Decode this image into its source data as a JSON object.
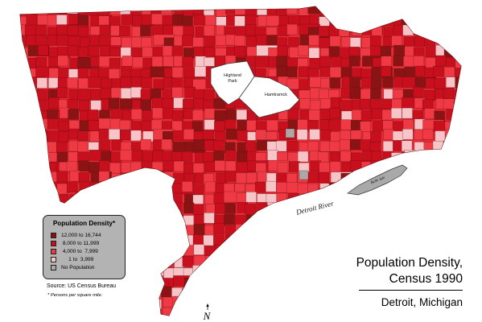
{
  "map": {
    "labels": {
      "highland_park": [
        "Highland",
        "Park"
      ],
      "hamtramck": "Hamtramck",
      "detroit_river": "Detroit River",
      "belle_isle": "Belle Isle"
    },
    "colors": {
      "class_1": "#8a1414",
      "class_2": "#c80f1e",
      "class_3": "#ef3a45",
      "class_4": "#f7c4c8",
      "no_population": "#a9a9a9",
      "background": "#ffffff"
    }
  },
  "legend": {
    "title": "Population Density*",
    "items": [
      {
        "label": "12,000 to 16,744",
        "color": "#8a1414"
      },
      {
        "label": " 8,000 to 11,999",
        "color": "#c80f1e"
      },
      {
        "label": " 4,000 to  7,999",
        "color": "#ef3a45"
      },
      {
        "label": "     1 to  3,999",
        "color": "#f7c4c8"
      },
      {
        "label": "No Population",
        "color": "#a9a9a9"
      }
    ]
  },
  "source": "Source: US Census Bureau",
  "note": "* Persons per square mile.",
  "title": {
    "line1": "Population Density,",
    "line2": "Census 1990",
    "line3": "Detroit, Michigan"
  },
  "north_arrow": {
    "letter": "N",
    "icon": "north-arrow-icon"
  }
}
